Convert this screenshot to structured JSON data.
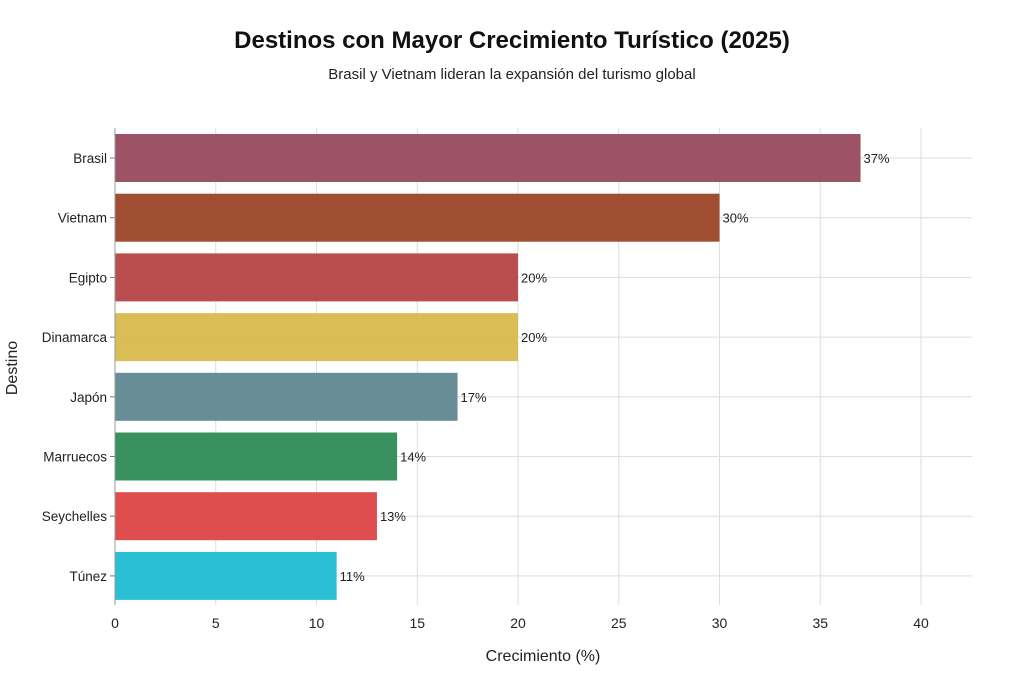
{
  "chart_data": {
    "type": "bar",
    "orientation": "horizontal",
    "title": "Destinos con Mayor Crecimiento Turístico (2025)",
    "subtitle": "Brasil y Vietnam lideran la expansión del turismo global",
    "xlabel": "Crecimiento (%)",
    "ylabel": "Destino",
    "xlim": [
      0,
      42
    ],
    "xticks": [
      0,
      5,
      10,
      15,
      20,
      25,
      30,
      35,
      40
    ],
    "grid": true,
    "categories": [
      "Brasil",
      "Vietnam",
      "Egipto",
      "Dinamarca",
      "Japón",
      "Marruecos",
      "Seychelles",
      "Túnez"
    ],
    "values": [
      37,
      30,
      20,
      20,
      17,
      14,
      13,
      11
    ],
    "value_labels": [
      "37%",
      "30%",
      "20%",
      "20%",
      "17%",
      "14%",
      "13%",
      "11%"
    ],
    "colors": [
      "#974a5e",
      "#9a4527",
      "#b64444",
      "#d8b94b",
      "#5f8791",
      "#2e8b57",
      "#dc4545",
      "#20bcd3"
    ]
  }
}
